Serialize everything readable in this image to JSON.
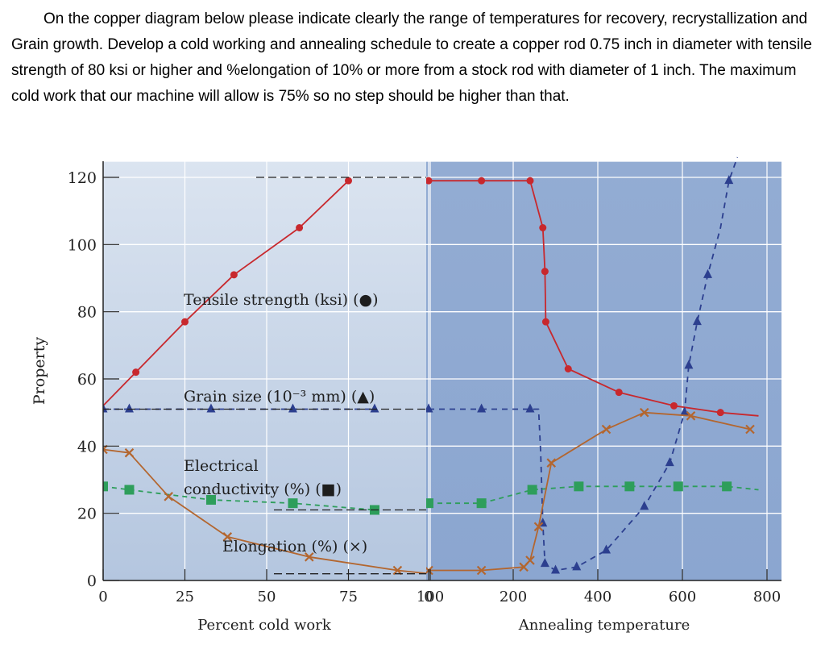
{
  "question": {
    "text": "On the copper diagram below please indicate clearly the range of temperatures for recovery, recrystallization and Grain growth.  Develop a cold working and annealing schedule to create a copper rod 0.75 inch in diameter with tensile strength of 80 ksi or higher and %elongation of 10% or more from a stock rod with diameter of 1 inch.  The maximum cold work that our machine will allow is 75% so no step should be higher than that."
  },
  "chart_data": {
    "type": "line",
    "ylabel": "Property",
    "ylim": [
      0,
      120
    ],
    "y_ticks": [
      "0",
      "20",
      "40",
      "60",
      "80",
      "100",
      "120"
    ],
    "colors": {
      "tensile": "#c8282d",
      "grain": "#2c3f8f",
      "conductivity": "#2e9e5b",
      "elongation": "#b3662f",
      "left_bg_top": "#dbe4f0",
      "left_bg_bottom": "#b4c6df",
      "right_bg_top": "#93acd3",
      "right_bg_bottom": "#8ba6d0"
    },
    "panels": [
      {
        "name": "cold-work",
        "xlabel": "Percent cold work",
        "xlim": [
          0,
          100
        ],
        "x_ticks": [
          "0",
          "25",
          "50",
          "75",
          "100"
        ],
        "series": [
          {
            "key": "tensile",
            "marker": "circle",
            "style": "solid",
            "points": [
              [
                0,
                52
              ],
              [
                10,
                62
              ],
              [
                25,
                77
              ],
              [
                40,
                91
              ],
              [
                60,
                105
              ],
              [
                75,
                119
              ]
            ]
          },
          {
            "key": "grain",
            "marker": "triangle",
            "style": "dashed",
            "points": [
              [
                0,
                51
              ],
              [
                8,
                51
              ],
              [
                33,
                51
              ],
              [
                58,
                51
              ],
              [
                83,
                51
              ]
            ]
          },
          {
            "key": "conductivity",
            "marker": "square",
            "style": "dashed",
            "points": [
              [
                0,
                28
              ],
              [
                8,
                27
              ],
              [
                33,
                24
              ],
              [
                58,
                23
              ],
              [
                83,
                21
              ]
            ]
          },
          {
            "key": "elongation",
            "marker": "cross",
            "style": "solid",
            "points": [
              [
                0,
                39
              ],
              [
                8,
                38
              ],
              [
                20,
                25
              ],
              [
                38,
                13
              ],
              [
                63,
                7
              ],
              [
                90,
                3
              ],
              [
                100,
                2
              ]
            ]
          }
        ]
      },
      {
        "name": "annealing",
        "xlabel": "Annealing temperature",
        "xlim": [
          0,
          800
        ],
        "x_ticks": [
          "0",
          "200",
          "400",
          "600",
          "800"
        ],
        "series": [
          {
            "key": "tensile",
            "marker": "circle",
            "style": "solid",
            "points": [
              [
                0,
                119
              ],
              [
                125,
                119
              ],
              [
                240,
                119
              ],
              [
                270,
                105
              ],
              [
                275,
                92
              ],
              [
                277,
                77
              ],
              [
                330,
                63
              ],
              [
                450,
                56
              ],
              [
                580,
                52
              ],
              [
                690,
                50
              ],
              [
                780,
                49
              ]
            ]
          },
          {
            "key": "grain",
            "marker": "triangle",
            "style": "dashed",
            "points": [
              [
                0,
                51
              ],
              [
                125,
                51
              ],
              [
                240,
                51
              ],
              [
                260,
                51
              ],
              [
                265,
                38
              ],
              [
                270,
                17
              ],
              [
                275,
                5
              ],
              [
                300,
                3
              ],
              [
                350,
                4
              ],
              [
                420,
                9
              ],
              [
                510,
                22
              ],
              [
                570,
                35
              ],
              [
                605,
                50
              ],
              [
                615,
                64
              ],
              [
                635,
                77
              ],
              [
                660,
                91
              ],
              [
                690,
                105
              ],
              [
                710,
                119
              ],
              [
                730,
                126
              ]
            ]
          },
          {
            "key": "conductivity",
            "marker": "square",
            "style": "dashed",
            "points": [
              [
                0,
                23
              ],
              [
                125,
                23
              ],
              [
                245,
                27
              ],
              [
                355,
                28
              ],
              [
                475,
                28
              ],
              [
                590,
                28
              ],
              [
                705,
                28
              ],
              [
                780,
                27
              ]
            ]
          },
          {
            "key": "elongation",
            "marker": "cross",
            "style": "solid",
            "points": [
              [
                0,
                3
              ],
              [
                125,
                3
              ],
              [
                225,
                4
              ],
              [
                240,
                6
              ],
              [
                260,
                16
              ],
              [
                290,
                35
              ],
              [
                420,
                45
              ],
              [
                510,
                50
              ],
              [
                620,
                49
              ],
              [
                760,
                45
              ]
            ]
          }
        ]
      }
    ],
    "legend_labels": [
      {
        "key": "tensile",
        "text": "Tensile strength (ksi) (●)"
      },
      {
        "key": "grain",
        "text": "Grain size (10⁻³ mm) (▲)"
      },
      {
        "key": "conductivity",
        "line1": "Electrical",
        "line2": "conductivity (%) (■)"
      },
      {
        "key": "elongation",
        "text": "Elongation (%) (×)"
      }
    ]
  }
}
